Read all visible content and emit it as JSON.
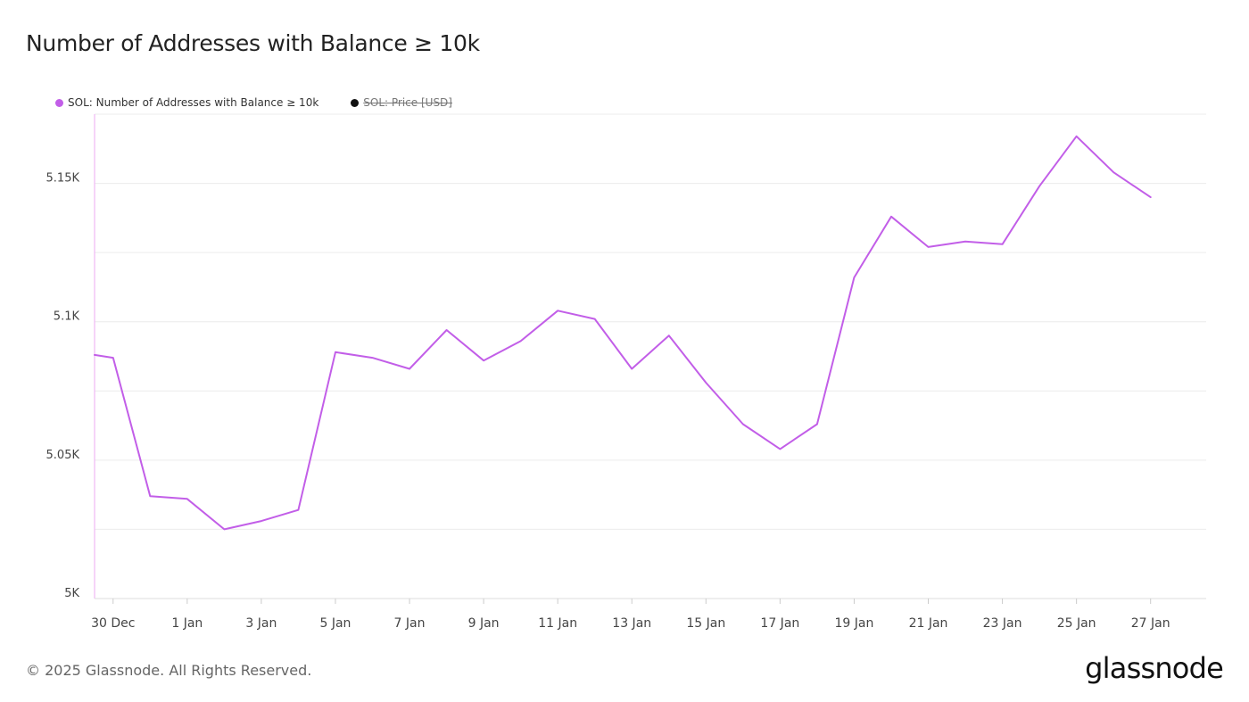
{
  "title": "Number of Addresses with Balance ≥ 10k",
  "legend": [
    {
      "label": "SOL: Number of Addresses with Balance ≥ 10k",
      "color": "#c25ee8",
      "hidden": false
    },
    {
      "label": "SOL: Price [USD]",
      "color": "#111111",
      "hidden": true
    }
  ],
  "footer": "© 2025 Glassnode. All Rights Reserved.",
  "brand": "glassnode",
  "chart_data": {
    "type": "line",
    "series": [
      {
        "name": "SOL: Number of Addresses with Balance ≥ 10k",
        "color": "#c25ee8",
        "x": [
          "2024-12-29T12:00",
          "2024-12-30",
          "2024-12-31",
          "2025-01-01",
          "2025-01-02",
          "2025-01-03",
          "2025-01-04",
          "2025-01-05",
          "2025-01-06",
          "2025-01-07",
          "2025-01-08",
          "2025-01-09",
          "2025-01-10",
          "2025-01-11",
          "2025-01-12",
          "2025-01-13",
          "2025-01-14",
          "2025-01-15",
          "2025-01-16",
          "2025-01-17",
          "2025-01-18",
          "2025-01-19",
          "2025-01-20",
          "2025-01-21",
          "2025-01-22",
          "2025-01-23",
          "2025-01-24",
          "2025-01-25",
          "2025-01-26",
          "2025-01-27"
        ],
        "values": [
          5088,
          5087,
          5037,
          5036,
          5025,
          5028,
          5032,
          5089,
          5087,
          5083,
          5097,
          5086,
          5093,
          5104,
          5101,
          5083,
          5095,
          5078,
          5063,
          5054,
          5063,
          5116,
          5138,
          5127,
          5129,
          5128,
          5149,
          5167,
          5154,
          5145
        ]
      }
    ],
    "y_ticks": [
      {
        "value": 5000,
        "label": "5K"
      },
      {
        "value": 5050,
        "label": "5.05K"
      },
      {
        "value": 5100,
        "label": "5.1K"
      },
      {
        "value": 5150,
        "label": "5.15K"
      }
    ],
    "x_ticks": [
      {
        "value": "2024-12-30",
        "label": "30 Dec"
      },
      {
        "value": "2025-01-01",
        "label": "1 Jan"
      },
      {
        "value": "2025-01-03",
        "label": "3 Jan"
      },
      {
        "value": "2025-01-05",
        "label": "5 Jan"
      },
      {
        "value": "2025-01-07",
        "label": "7 Jan"
      },
      {
        "value": "2025-01-09",
        "label": "9 Jan"
      },
      {
        "value": "2025-01-11",
        "label": "11 Jan"
      },
      {
        "value": "2025-01-13",
        "label": "13 Jan"
      },
      {
        "value": "2025-01-15",
        "label": "15 Jan"
      },
      {
        "value": "2025-01-17",
        "label": "17 Jan"
      },
      {
        "value": "2025-01-19",
        "label": "19 Jan"
      },
      {
        "value": "2025-01-21",
        "label": "21 Jan"
      },
      {
        "value": "2025-01-23",
        "label": "23 Jan"
      },
      {
        "value": "2025-01-25",
        "label": "25 Jan"
      },
      {
        "value": "2025-01-27",
        "label": "27 Jan"
      }
    ],
    "ylim": [
      5000,
      5175
    ],
    "xlim": [
      "2024-12-29T12:00",
      "2025-01-28T12:00"
    ],
    "grid": true,
    "legend_position": "top-left"
  }
}
